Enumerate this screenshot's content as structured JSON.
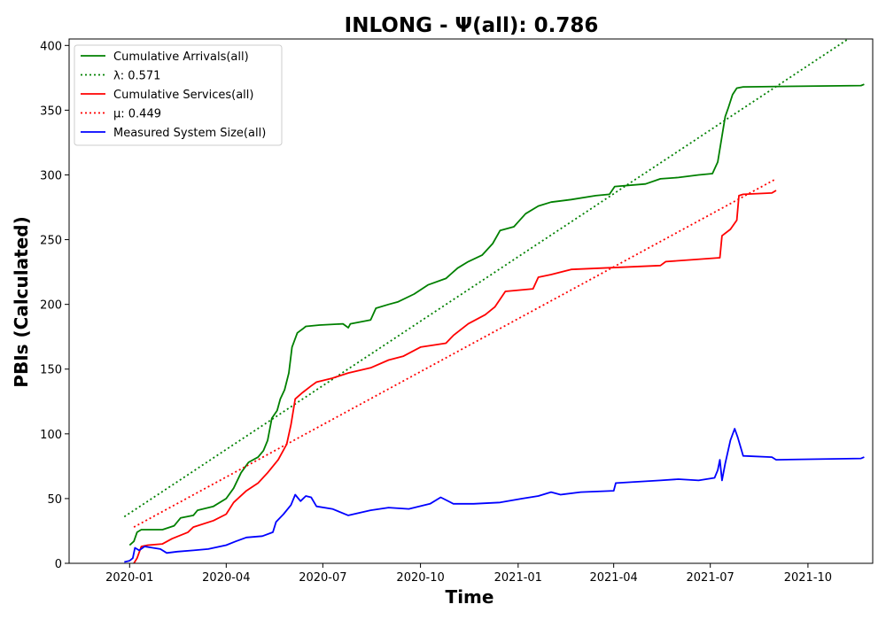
{
  "chart_data": {
    "type": "line",
    "title": "INLONG -  Ψ(all): 0.786",
    "xlabel": "Time",
    "ylabel": "PBIs (Calculated)",
    "x_range": [
      "2019-11-05",
      "2021-12-01"
    ],
    "ylim": [
      0,
      405
    ],
    "x_ticks": [
      "2020-01",
      "2020-04",
      "2020-07",
      "2020-10",
      "2021-01",
      "2021-04",
      "2021-07",
      "2021-10"
    ],
    "y_ticks": [
      0,
      50,
      100,
      150,
      200,
      250,
      300,
      350,
      400
    ],
    "legend_position": "upper-left",
    "grid": false,
    "series": [
      {
        "name": "Cumulative Arrivals(all)",
        "color": "#008000",
        "style": "solid",
        "points": [
          [
            "2020-01-01",
            14
          ],
          [
            "2020-01-05",
            17
          ],
          [
            "2020-01-08",
            24
          ],
          [
            "2020-01-12",
            26
          ],
          [
            "2020-02-01",
            26
          ],
          [
            "2020-02-12",
            29
          ],
          [
            "2020-02-18",
            35
          ],
          [
            "2020-03-01",
            37
          ],
          [
            "2020-03-05",
            41
          ],
          [
            "2020-03-20",
            44
          ],
          [
            "2020-04-01",
            50
          ],
          [
            "2020-04-08",
            58
          ],
          [
            "2020-04-15",
            70
          ],
          [
            "2020-04-22",
            78
          ],
          [
            "2020-05-01",
            82
          ],
          [
            "2020-05-06",
            87
          ],
          [
            "2020-05-10",
            95
          ],
          [
            "2020-05-14",
            112
          ],
          [
            "2020-05-19",
            118
          ],
          [
            "2020-05-22",
            127
          ],
          [
            "2020-05-26",
            134
          ],
          [
            "2020-05-30",
            147
          ],
          [
            "2020-06-02",
            167
          ],
          [
            "2020-06-07",
            178
          ],
          [
            "2020-06-12",
            181
          ],
          [
            "2020-06-15",
            183
          ],
          [
            "2020-06-28",
            184
          ],
          [
            "2020-07-20",
            185
          ],
          [
            "2020-07-25",
            182
          ],
          [
            "2020-07-27",
            185
          ],
          [
            "2020-08-15",
            188
          ],
          [
            "2020-08-20",
            197
          ],
          [
            "2020-09-01",
            200
          ],
          [
            "2020-09-10",
            202
          ],
          [
            "2020-09-25",
            208
          ],
          [
            "2020-10-08",
            215
          ],
          [
            "2020-10-25",
            220
          ],
          [
            "2020-11-05",
            228
          ],
          [
            "2020-11-15",
            233
          ],
          [
            "2020-11-28",
            238
          ],
          [
            "2020-12-08",
            247
          ],
          [
            "2020-12-15",
            257
          ],
          [
            "2020-12-28",
            260
          ],
          [
            "2021-01-08",
            270
          ],
          [
            "2021-01-20",
            276
          ],
          [
            "2021-02-01",
            279
          ],
          [
            "2021-02-20",
            281
          ],
          [
            "2021-03-15",
            284
          ],
          [
            "2021-03-28",
            285
          ],
          [
            "2021-04-02",
            291
          ],
          [
            "2021-05-01",
            293
          ],
          [
            "2021-05-15",
            297
          ],
          [
            "2021-06-01",
            298
          ],
          [
            "2021-06-20",
            300
          ],
          [
            "2021-07-03",
            301
          ],
          [
            "2021-07-08",
            310
          ],
          [
            "2021-07-12",
            330
          ],
          [
            "2021-07-15",
            345
          ],
          [
            "2021-07-18",
            352
          ],
          [
            "2021-07-22",
            362
          ],
          [
            "2021-07-26",
            367
          ],
          [
            "2021-08-01",
            368
          ],
          [
            "2021-11-20",
            369
          ],
          [
            "2021-11-23",
            370
          ]
        ]
      },
      {
        "name": "λ: 0.571",
        "color": "#008000",
        "style": "dotted",
        "points": [
          [
            "2019-12-27",
            36
          ],
          [
            "2021-11-08",
            405
          ]
        ]
      },
      {
        "name": "Cumulative Services(all)",
        "color": "#ff0000",
        "style": "solid",
        "points": [
          [
            "2020-01-05",
            0
          ],
          [
            "2020-01-08",
            4
          ],
          [
            "2020-01-12",
            13
          ],
          [
            "2020-01-18",
            14
          ],
          [
            "2020-02-01",
            15
          ],
          [
            "2020-02-10",
            19
          ],
          [
            "2020-02-25",
            24
          ],
          [
            "2020-03-01",
            28
          ],
          [
            "2020-03-20",
            33
          ],
          [
            "2020-04-01",
            38
          ],
          [
            "2020-04-08",
            47
          ],
          [
            "2020-04-20",
            56
          ],
          [
            "2020-05-01",
            62
          ],
          [
            "2020-05-10",
            70
          ],
          [
            "2020-05-20",
            80
          ],
          [
            "2020-05-28",
            92
          ],
          [
            "2020-06-01",
            107
          ],
          [
            "2020-06-05",
            127
          ],
          [
            "2020-06-12",
            132
          ],
          [
            "2020-06-20",
            137
          ],
          [
            "2020-06-25",
            140
          ],
          [
            "2020-07-10",
            143
          ],
          [
            "2020-07-25",
            147
          ],
          [
            "2020-08-15",
            151
          ],
          [
            "2020-09-01",
            157
          ],
          [
            "2020-09-15",
            160
          ],
          [
            "2020-10-01",
            167
          ],
          [
            "2020-10-25",
            170
          ],
          [
            "2020-11-01",
            176
          ],
          [
            "2020-11-15",
            185
          ],
          [
            "2020-12-01",
            192
          ],
          [
            "2020-12-10",
            198
          ],
          [
            "2020-12-20",
            210
          ],
          [
            "2021-01-15",
            212
          ],
          [
            "2021-01-20",
            221
          ],
          [
            "2021-02-01",
            223
          ],
          [
            "2021-02-20",
            227
          ],
          [
            "2021-05-15",
            230
          ],
          [
            "2021-05-20",
            233
          ],
          [
            "2021-07-10",
            236
          ],
          [
            "2021-07-12",
            253
          ],
          [
            "2021-07-20",
            258
          ],
          [
            "2021-07-26",
            265
          ],
          [
            "2021-07-28",
            284
          ],
          [
            "2021-08-01",
            285
          ],
          [
            "2021-08-28",
            286
          ],
          [
            "2021-09-01",
            288
          ]
        ]
      },
      {
        "name": "μ: 0.449",
        "color": "#ff0000",
        "style": "dotted",
        "points": [
          [
            "2020-01-05",
            28
          ],
          [
            "2021-09-01",
            297
          ]
        ]
      },
      {
        "name": "Measured System Size(all)",
        "color": "#0000ff",
        "style": "solid",
        "points": [
          [
            "2019-12-27",
            1
          ],
          [
            "2020-01-01",
            2
          ],
          [
            "2020-01-04",
            4
          ],
          [
            "2020-01-06",
            12
          ],
          [
            "2020-01-10",
            10
          ],
          [
            "2020-01-15",
            13
          ],
          [
            "2020-01-30",
            11
          ],
          [
            "2020-02-05",
            8
          ],
          [
            "2020-02-15",
            9
          ],
          [
            "2020-03-01",
            10
          ],
          [
            "2020-03-15",
            11
          ],
          [
            "2020-04-01",
            14
          ],
          [
            "2020-04-10",
            17
          ],
          [
            "2020-04-20",
            20
          ],
          [
            "2020-05-05",
            21
          ],
          [
            "2020-05-15",
            24
          ],
          [
            "2020-05-18",
            32
          ],
          [
            "2020-05-25",
            38
          ],
          [
            "2020-06-01",
            45
          ],
          [
            "2020-06-05",
            53
          ],
          [
            "2020-06-10",
            48
          ],
          [
            "2020-06-15",
            52
          ],
          [
            "2020-06-20",
            51
          ],
          [
            "2020-06-25",
            44
          ],
          [
            "2020-07-10",
            42
          ],
          [
            "2020-07-25",
            37
          ],
          [
            "2020-08-15",
            41
          ],
          [
            "2020-09-01",
            43
          ],
          [
            "2020-09-20",
            42
          ],
          [
            "2020-10-10",
            46
          ],
          [
            "2020-10-20",
            51
          ],
          [
            "2020-11-01",
            46
          ],
          [
            "2020-11-20",
            46
          ],
          [
            "2020-12-15",
            47
          ],
          [
            "2021-01-05",
            50
          ],
          [
            "2021-01-20",
            52
          ],
          [
            "2021-02-01",
            55
          ],
          [
            "2021-02-10",
            53
          ],
          [
            "2021-03-01",
            55
          ],
          [
            "2021-04-01",
            56
          ],
          [
            "2021-04-03",
            62
          ],
          [
            "2021-05-15",
            64
          ],
          [
            "2021-06-01",
            65
          ],
          [
            "2021-06-20",
            64
          ],
          [
            "2021-07-05",
            66
          ],
          [
            "2021-07-08",
            72
          ],
          [
            "2021-07-10",
            80
          ],
          [
            "2021-07-12",
            64
          ],
          [
            "2021-07-15",
            77
          ],
          [
            "2021-07-20",
            95
          ],
          [
            "2021-07-24",
            104
          ],
          [
            "2021-07-27",
            97
          ],
          [
            "2021-08-01",
            83
          ],
          [
            "2021-08-28",
            82
          ],
          [
            "2021-09-01",
            80
          ],
          [
            "2021-11-20",
            81
          ],
          [
            "2021-11-23",
            82
          ]
        ]
      }
    ]
  }
}
